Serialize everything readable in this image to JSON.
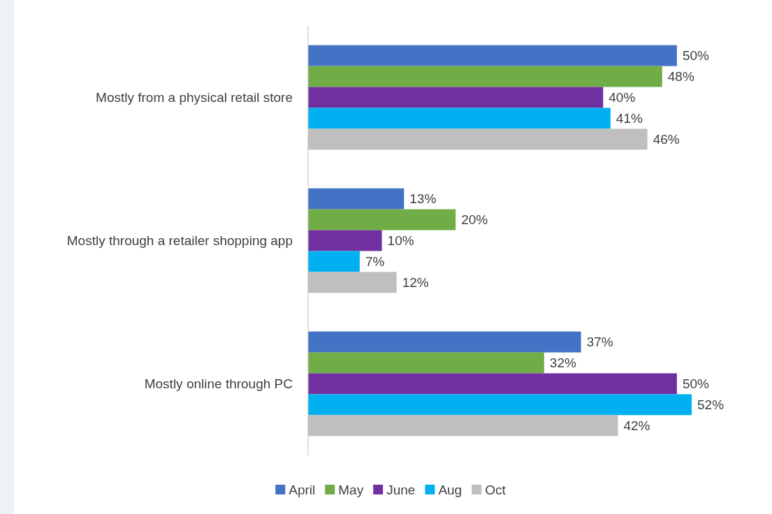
{
  "chart_data": {
    "type": "bar",
    "orientation": "horizontal",
    "legend": "bottom",
    "categories": [
      "Mostly from a physical retail store",
      "Mostly through a retailer shopping app",
      "Mostly online through PC"
    ],
    "series": [
      {
        "name": "April",
        "color": "#4472c4",
        "values": [
          50,
          13,
          37
        ],
        "value_labels": [
          "50%",
          "13%",
          "37%"
        ]
      },
      {
        "name": "May",
        "color": "#70ad47",
        "values": [
          48,
          20,
          32
        ],
        "value_labels": [
          "48%",
          "20%",
          "32%"
        ]
      },
      {
        "name": "June",
        "color": "#7030a0",
        "values": [
          40,
          10,
          50
        ],
        "value_labels": [
          "40%",
          "10%",
          "50%"
        ]
      },
      {
        "name": "Aug",
        "color": "#00b0f0",
        "values": [
          41,
          7,
          52
        ],
        "value_labels": [
          "41%",
          "7%",
          "52%"
        ]
      },
      {
        "name": "Oct",
        "color": "#bfbfbf",
        "values": [
          46,
          12,
          42
        ],
        "value_labels": [
          "46%",
          "12%",
          "42%"
        ]
      }
    ]
  }
}
